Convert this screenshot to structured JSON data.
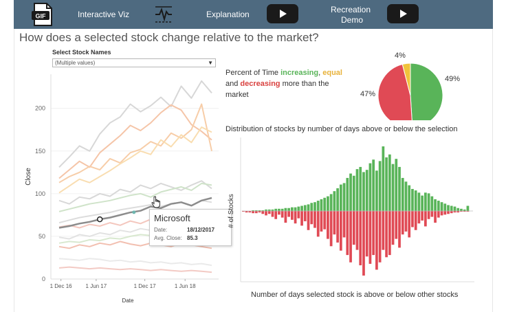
{
  "nav": {
    "gif_icon": "gif-icon",
    "interactive_viz": "Interactive Viz",
    "chart_icon": "chart-icon",
    "explanation": "Explanation",
    "recreation_line1": "Recreation",
    "recreation_line2": "Demo"
  },
  "title": "How does a selected stock change relative to the market?",
  "filter": {
    "label": "Select Stock Names",
    "value": "(Multiple values)"
  },
  "tooltip": {
    "name": "Microsoft",
    "date_label": "Date:",
    "date_value": "18/12/2017",
    "close_label": "Avg. Close:",
    "close_value": "85.3"
  },
  "pie_text": {
    "prefix": "Percent of Time ",
    "increasing": "increasing",
    "comma": ",",
    "equal": "equal",
    "and": " and ",
    "decreasing": "decreasing",
    "suffix": " more than the market"
  },
  "colors": {
    "increasing": "#59b459",
    "equal": "#f0c33c",
    "decreasing": "#e04a55",
    "nav_bg": "#4e6a80"
  },
  "chart_data": [
    {
      "type": "line",
      "xlabel": "Date",
      "ylabel": "Close",
      "x_ticks": [
        "1 Dec 16",
        "1 Jun 17",
        "1 Dec 17",
        "1 Jun 18"
      ],
      "y_ticks": [
        0,
        50,
        100,
        150,
        200
      ],
      "ylim": [
        0,
        240
      ],
      "highlighted_series": "Microsoft",
      "series": [
        {
          "values": [
            131,
            143,
            156,
            150,
            170,
            183,
            190,
            205,
            196,
            203,
            213,
            202,
            226,
            212,
            232,
            218
          ]
        },
        {
          "values": [
            118,
            128,
            138,
            131,
            148,
            158,
            168,
            180,
            174,
            183,
            195,
            204,
            198,
            181,
            173,
            163
          ]
        },
        {
          "values": [
            113,
            120,
            125,
            132,
            128,
            141,
            136,
            148,
            152,
            161,
            156,
            171,
            165,
            175,
            205,
            150
          ]
        },
        {
          "values": [
            101,
            109,
            117,
            113,
            120,
            127,
            135,
            142,
            150,
            146,
            163,
            155,
            169,
            160,
            178,
            172
          ]
        },
        {
          "values": [
            92,
            88,
            96,
            94,
            100,
            97,
            105,
            102,
            110,
            106,
            112,
            108,
            104,
            110,
            115,
            106
          ]
        },
        {
          "values": [
            79,
            82,
            85,
            88,
            90,
            92,
            95,
            98,
            100,
            96,
            102,
            105,
            108,
            104,
            112,
            110
          ]
        },
        {
          "values": [
            66,
            69,
            72,
            74,
            76,
            78,
            81,
            83,
            85,
            87,
            85,
            88,
            90,
            86,
            92,
            90
          ]
        },
        {
          "values": [
            61,
            63,
            60,
            64,
            62,
            66,
            63,
            68,
            65,
            70,
            67,
            72,
            70,
            74,
            72,
            75
          ]
        },
        {
          "values": [
            49,
            47,
            52,
            50,
            54,
            52,
            57,
            55,
            59,
            57,
            62,
            60,
            58,
            62,
            60,
            57
          ]
        },
        {
          "values": [
            42,
            44,
            43,
            46,
            45,
            48,
            47,
            50,
            52,
            51,
            49,
            53,
            55,
            52,
            50,
            48
          ]
        },
        {
          "values": [
            38,
            36,
            40,
            38,
            42,
            40,
            44,
            41,
            39,
            42,
            40,
            38,
            42,
            40,
            38,
            36
          ]
        },
        {
          "values": [
            24,
            23,
            22,
            24,
            23,
            21,
            22,
            20,
            21,
            19,
            20,
            18,
            19,
            17,
            18,
            16
          ]
        },
        {
          "values": [
            13,
            14,
            13,
            12,
            13,
            12,
            11,
            12,
            11,
            10,
            11,
            10,
            9,
            10,
            9,
            8
          ]
        },
        {
          "name": "Microsoft",
          "values": [
            60,
            62,
            65,
            67,
            70,
            72,
            75,
            78,
            80,
            85,
            83,
            88,
            90,
            86,
            92,
            95
          ]
        }
      ]
    },
    {
      "type": "pie",
      "title": "Percent of Time increasing, equal and decreasing more than the market",
      "slices": [
        {
          "name": "increasing",
          "value": 49,
          "label": "49%"
        },
        {
          "name": "decreasing",
          "value": 47,
          "label": "47%"
        },
        {
          "name": "equal",
          "value": 4,
          "label": "4%"
        }
      ]
    },
    {
      "type": "bar",
      "title": "Distribution of stocks by number of days above or below the selection",
      "xlabel": "Number of days selected stock is above or below other stocks",
      "ylabel": "# of Stocks",
      "above": [
        0,
        0,
        0,
        1,
        1,
        1,
        1,
        2,
        2,
        2,
        3,
        3,
        3,
        4,
        4,
        5,
        5,
        6,
        7,
        8,
        9,
        11,
        12,
        14,
        16,
        18,
        20,
        23,
        27,
        31,
        36,
        38,
        45,
        51,
        48,
        57,
        60,
        53,
        56,
        65,
        70,
        55,
        68,
        88,
        73,
        77,
        64,
        71,
        60,
        45,
        40,
        35,
        30,
        28,
        25,
        21,
        25,
        24,
        20,
        16,
        14,
        12,
        10,
        8,
        7,
        6,
        4,
        3,
        2,
        7,
        0
      ],
      "below": [
        1,
        2,
        2,
        3,
        3,
        2,
        4,
        6,
        4,
        8,
        11,
        5,
        9,
        16,
        8,
        12,
        17,
        10,
        20,
        14,
        26,
        18,
        23,
        35,
        28,
        25,
        38,
        48,
        32,
        43,
        54,
        36,
        60,
        70,
        46,
        53,
        74,
        88,
        62,
        72,
        60,
        80,
        70,
        53,
        63,
        60,
        46,
        38,
        50,
        32,
        28,
        36,
        22,
        26,
        17,
        13,
        21,
        11,
        8,
        16,
        9,
        6,
        5,
        4,
        3,
        2,
        2,
        1,
        1,
        1,
        0
      ]
    }
  ]
}
